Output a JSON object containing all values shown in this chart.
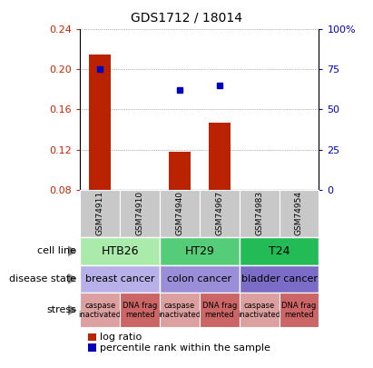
{
  "title": "GDS1712 / 18014",
  "samples": [
    "GSM74911",
    "GSM74910",
    "GSM74940",
    "GSM74967",
    "GSM74983",
    "GSM74954"
  ],
  "log_ratio": [
    0.215,
    null,
    0.118,
    0.147,
    null,
    null
  ],
  "percentile_rank": [
    75,
    null,
    62,
    65,
    null,
    null
  ],
  "ylim_left": [
    0.08,
    0.24
  ],
  "ylim_right": [
    0,
    100
  ],
  "yticks_left": [
    0.08,
    0.12,
    0.16,
    0.2,
    0.24
  ],
  "yticks_right": [
    0,
    25,
    50,
    75,
    100
  ],
  "ytick_labels_left": [
    "0.08",
    "0.12",
    "0.16",
    "0.20",
    "0.24"
  ],
  "ytick_labels_right": [
    "0",
    "25",
    "50",
    "75",
    "100%"
  ],
  "cell_lines": [
    {
      "label": "HTB26",
      "cols": [
        0,
        1
      ],
      "color": "#AAEAAA"
    },
    {
      "label": "HT29",
      "cols": [
        2,
        3
      ],
      "color": "#55CC77"
    },
    {
      "label": "T24",
      "cols": [
        4,
        5
      ],
      "color": "#22BB55"
    }
  ],
  "disease_states": [
    {
      "label": "breast cancer",
      "cols": [
        0,
        1
      ],
      "color": "#B8B0E8"
    },
    {
      "label": "colon cancer",
      "cols": [
        2,
        3
      ],
      "color": "#9A8ED8"
    },
    {
      "label": "bladder cancer",
      "cols": [
        4,
        5
      ],
      "color": "#7B6CC8"
    }
  ],
  "stresses": [
    {
      "label": "caspase\ninactivated",
      "col": 0,
      "color": "#DDA0A0"
    },
    {
      "label": "DNA frag\nmented",
      "col": 1,
      "color": "#CC6666"
    },
    {
      "label": "caspase\ninactivated",
      "col": 2,
      "color": "#DDA0A0"
    },
    {
      "label": "DNA frag\nmented",
      "col": 3,
      "color": "#CC6666"
    },
    {
      "label": "caspase\ninactivated",
      "col": 4,
      "color": "#DDA0A0"
    },
    {
      "label": "DNA frag\nmented",
      "col": 5,
      "color": "#CC6666"
    }
  ],
  "bar_color": "#BB2200",
  "dot_color": "#0000BB",
  "grid_color": "#888888",
  "label_color_left": "#CC2200",
  "label_color_right": "#0000BB",
  "sample_box_color": "#C8C8C8",
  "row_labels": [
    "cell line",
    "disease state",
    "stress"
  ],
  "arrow_color": "#888888"
}
